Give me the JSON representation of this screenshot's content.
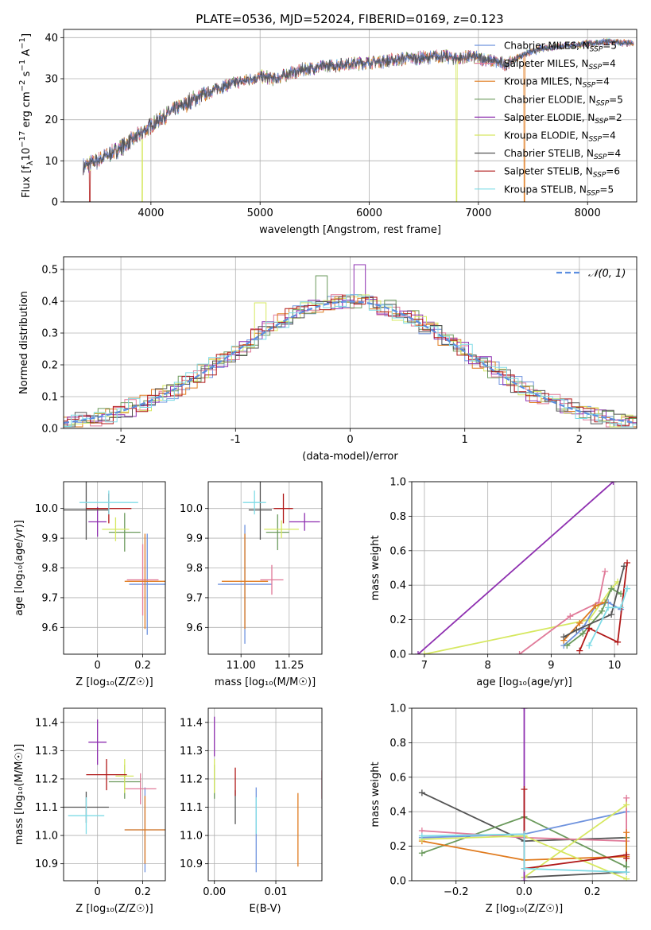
{
  "figure": {
    "title": "PLATE=0536, MJD=52024, FIBERID=0169, z=0.123"
  },
  "colors": {
    "chabrier_miles": "#6f93de",
    "salpeter_miles": "#e07a99",
    "kroupa_miles": "#e07b1f",
    "chabrier_elodie": "#6b9a5c",
    "salpeter_elodie": "#8e2fb0",
    "kroupa_elodie": "#d6e860",
    "chabrier_stelib": "#545454",
    "salpeter_stelib": "#b01818",
    "kroupa_stelib": "#7fdbe6",
    "normal_curve": "#5b8ee0"
  },
  "legend": [
    {
      "label": "Chabrier MILES, N",
      "sub": "SSP",
      "suffix": "=5",
      "color": "chabrier_miles"
    },
    {
      "label": "Salpeter MILES, N",
      "sub": "SSP",
      "suffix": "=4",
      "color": "salpeter_miles"
    },
    {
      "label": "Kroupa MILES, N",
      "sub": "SSP",
      "suffix": "=4",
      "color": "kroupa_miles"
    },
    {
      "label": "Chabrier ELODIE, N",
      "sub": "SSP",
      "suffix": "=5",
      "color": "chabrier_elodie"
    },
    {
      "label": "Salpeter ELODIE, N",
      "sub": "SSP",
      "suffix": "=2",
      "color": "salpeter_elodie"
    },
    {
      "label": "Kroupa ELODIE, N",
      "sub": "SSP",
      "suffix": "=4",
      "color": "kroupa_elodie"
    },
    {
      "label": "Chabrier STELIB, N",
      "sub": "SSP",
      "suffix": "=4",
      "color": "chabrier_stelib"
    },
    {
      "label": "Salpeter STELIB, N",
      "sub": "SSP",
      "suffix": "=6",
      "color": "salpeter_stelib"
    },
    {
      "label": "Kroupa STELIB, N",
      "sub": "SSP",
      "suffix": "=5",
      "color": "kroupa_stelib"
    }
  ],
  "chart_data": [
    {
      "id": "spectrum",
      "type": "line",
      "xlabel": "wavelength [Angstrom, rest frame]",
      "ylabel": "Flux [f",
      "ylabel_parts": [
        "Flux [f",
        "λ",
        "10",
        "−17",
        " erg cm",
        "−2",
        " s",
        "−1",
        " A",
        "−1",
        "]"
      ],
      "xlim": [
        3200,
        8450
      ],
      "ylim": [
        0,
        42
      ],
      "xticks": [
        4000,
        5000,
        6000,
        7000,
        8000
      ],
      "yticks": [
        0,
        10,
        20,
        30,
        40
      ],
      "continuum": {
        "x": [
          3380,
          3500,
          3650,
          3800,
          3950,
          4100,
          4250,
          4400,
          4550,
          4700,
          4850,
          5000,
          5150,
          5300,
          5450,
          5600,
          5750,
          5900,
          6050,
          6200,
          6350,
          6500,
          6650,
          6800,
          6950,
          7100,
          7250,
          7420,
          7600,
          7800,
          8000,
          8200,
          8420
        ],
        "y": [
          8.5,
          10,
          12,
          14.5,
          17.5,
          20.5,
          23,
          25,
          27,
          28.5,
          29.5,
          30.5,
          30,
          31.5,
          32.5,
          33,
          33.5,
          33.8,
          34,
          34.5,
          35,
          35,
          35.5,
          35,
          35.3,
          34.5,
          33.5,
          36,
          37.5,
          38,
          38.5,
          39,
          38.5
        ]
      },
      "drops": [
        {
          "series": "salpeter_stelib",
          "x": 3440
        },
        {
          "series": "kroupa_elodie",
          "x": 3920
        },
        {
          "series": "kroupa_elodie",
          "x": 6800
        },
        {
          "series": "kroupa_miles",
          "x": 7420
        }
      ]
    },
    {
      "id": "residuals",
      "type": "step",
      "xlabel": "(data-model)/error",
      "ylabel": "Normed distribution",
      "xlim": [
        -2.5,
        2.5
      ],
      "ylim": [
        0,
        0.54
      ],
      "xticks": [
        -2,
        -1,
        0,
        1,
        2
      ],
      "yticks": [
        0.0,
        0.1,
        0.2,
        0.3,
        0.4,
        0.5
      ],
      "legend_label": "𝒩(0, 1)",
      "bin_width": 0.1,
      "peak_outliers": [
        {
          "series": "salpeter_elodie",
          "x": 0.05,
          "y": 0.515
        },
        {
          "series": "chabrier_elodie",
          "x": -0.25,
          "y": 0.48
        },
        {
          "series": "kroupa_elodie",
          "x": -0.75,
          "y": 0.395
        }
      ]
    },
    {
      "id": "age_vs_Z",
      "type": "errorbar",
      "xlabel": "Z [log",
      "xlabel_text": "Z [log₁₀(Z/Z☉)]",
      "ylabel_text": "age  [log₁₀(age/yr)]",
      "xlim": [
        -0.15,
        0.3
      ],
      "ylim": [
        9.51,
        10.09
      ],
      "xticks": [
        0.0,
        0.2
      ],
      "yticks": [
        9.6,
        9.7,
        9.8,
        9.9,
        10.0
      ],
      "points": [
        {
          "series": "chabrier_miles",
          "x": 0.22,
          "xerr": 0.08,
          "y": 9.745,
          "yerr": 0.17
        },
        {
          "series": "salpeter_miles",
          "x": 0.2,
          "xerr": 0.07,
          "y": 9.76,
          "yerr": 0.12
        },
        {
          "series": "kroupa_miles",
          "x": 0.21,
          "xerr": 0.09,
          "y": 9.755,
          "yerr": 0.16
        },
        {
          "series": "chabrier_elodie",
          "x": 0.12,
          "xerr": 0.07,
          "y": 9.92,
          "yerr": 0.065
        },
        {
          "series": "salpeter_elodie",
          "x": 0.0,
          "xerr": 0.04,
          "y": 9.955,
          "yerr": 0.05
        },
        {
          "series": "kroupa_elodie",
          "x": 0.08,
          "xerr": 0.06,
          "y": 9.93,
          "yerr": 0.04
        },
        {
          "series": "chabrier_stelib",
          "x": -0.05,
          "xerr": 0.1,
          "y": 9.995,
          "yerr": 0.1
        },
        {
          "series": "salpeter_stelib",
          "x": 0.05,
          "xerr": 0.1,
          "y": 10.0,
          "yerr": 0.05
        },
        {
          "series": "kroupa_stelib",
          "x": 0.05,
          "xerr": 0.13,
          "y": 10.02,
          "yerr": 0.04
        }
      ]
    },
    {
      "id": "age_vs_mass",
      "type": "errorbar",
      "xlabel_text": "mass [log₁₀(M/M☉)]",
      "xlim": [
        10.83,
        11.42
      ],
      "ylim": [
        9.51,
        10.09
      ],
      "xticks": [
        11.0,
        11.25
      ],
      "xtick_labels": [
        "11.00",
        "11.25"
      ],
      "yticks": [
        9.6,
        9.7,
        9.8,
        9.9,
        10.0
      ],
      "points": [
        {
          "series": "chabrier_miles",
          "x": 11.02,
          "xerr": 0.14,
          "y": 9.745,
          "yerr": 0.2
        },
        {
          "series": "salpeter_miles",
          "x": 11.16,
          "xerr": 0.06,
          "y": 9.76,
          "yerr": 0.05
        },
        {
          "series": "kroupa_miles",
          "x": 11.02,
          "xerr": 0.12,
          "y": 9.755,
          "yerr": 0.16
        },
        {
          "series": "chabrier_elodie",
          "x": 11.19,
          "xerr": 0.06,
          "y": 9.92,
          "yerr": 0.06
        },
        {
          "series": "salpeter_elodie",
          "x": 11.33,
          "xerr": 0.08,
          "y": 9.955,
          "yerr": 0.03
        },
        {
          "series": "kroupa_elodie",
          "x": 11.21,
          "xerr": 0.09,
          "y": 9.93,
          "yerr": 0.03
        },
        {
          "series": "chabrier_stelib",
          "x": 11.1,
          "xerr": 0.06,
          "y": 9.995,
          "yerr": 0.1
        },
        {
          "series": "salpeter_stelib",
          "x": 11.22,
          "xerr": 0.05,
          "y": 10.0,
          "yerr": 0.05
        },
        {
          "series": "kroupa_stelib",
          "x": 11.07,
          "xerr": 0.06,
          "y": 10.02,
          "yerr": 0.04
        }
      ]
    },
    {
      "id": "mass_weight_vs_age",
      "type": "line",
      "xlabel_text": "age  [log₁₀(age/yr)]",
      "ylabel": "mass weight",
      "xlim": [
        6.8,
        10.35
      ],
      "ylim": [
        0.0,
        1.0
      ],
      "xticks": [
        7,
        8,
        9,
        10
      ],
      "yticks": [
        0.0,
        0.2,
        0.4,
        0.6,
        0.8,
        1.0
      ],
      "series": [
        {
          "name": "salpeter_elodie",
          "x": [
            6.9,
            9.98
          ],
          "y": [
            0.0,
            1.0
          ]
        },
        {
          "name": "kroupa_elodie",
          "x": [
            7.0,
            9.6,
            9.95,
            10.05
          ],
          "y": [
            0.0,
            0.2,
            0.38,
            0.42
          ]
        },
        {
          "name": "salpeter_miles",
          "x": [
            8.5,
            9.3,
            9.75,
            9.85
          ],
          "y": [
            0.0,
            0.22,
            0.3,
            0.48
          ]
        },
        {
          "name": "chabrier_miles",
          "x": [
            9.2,
            9.5,
            9.7,
            9.9,
            10.1
          ],
          "y": [
            0.05,
            0.15,
            0.28,
            0.3,
            0.26
          ]
        },
        {
          "name": "kroupa_miles",
          "x": [
            9.2,
            9.45,
            9.7,
            9.85
          ],
          "y": [
            0.08,
            0.18,
            0.28,
            0.3
          ]
        },
        {
          "name": "chabrier_elodie",
          "x": [
            9.25,
            9.5,
            9.8,
            9.95,
            10.1
          ],
          "y": [
            0.05,
            0.12,
            0.25,
            0.38,
            0.35
          ]
        },
        {
          "name": "chabrier_stelib",
          "x": [
            9.2,
            9.4,
            9.95,
            10.15
          ],
          "y": [
            0.1,
            0.14,
            0.23,
            0.51
          ]
        },
        {
          "name": "salpeter_stelib",
          "x": [
            9.45,
            9.6,
            10.05,
            10.2
          ],
          "y": [
            0.02,
            0.15,
            0.07,
            0.53
          ]
        },
        {
          "name": "kroupa_stelib",
          "x": [
            9.6,
            9.9,
            10.1,
            10.2
          ],
          "y": [
            0.05,
            0.27,
            0.27,
            0.38
          ]
        }
      ]
    },
    {
      "id": "mass_vs_Z",
      "type": "errorbar",
      "xlabel_text": "Z [log₁₀(Z/Z☉)]",
      "ylabel_text": "mass [log₁₀(M/M☉)]",
      "xlim": [
        -0.15,
        0.3
      ],
      "ylim": [
        10.84,
        11.45
      ],
      "xticks": [
        0.0,
        0.2
      ],
      "yticks": [
        10.9,
        11.0,
        11.1,
        11.2,
        11.3,
        11.4
      ],
      "points": [
        {
          "series": "chabrier_miles",
          "x": 0.21,
          "xerr": 0.09,
          "y": 11.02,
          "yerr": 0.15
        },
        {
          "series": "salpeter_miles",
          "x": 0.19,
          "xerr": 0.07,
          "y": 11.165,
          "yerr": 0.055
        },
        {
          "series": "kroupa_miles",
          "x": 0.21,
          "xerr": 0.09,
          "y": 11.02,
          "yerr": 0.12
        },
        {
          "series": "chabrier_elodie",
          "x": 0.12,
          "xerr": 0.07,
          "y": 11.19,
          "yerr": 0.06
        },
        {
          "series": "salpeter_elodie",
          "x": 0.0,
          "xerr": 0.04,
          "y": 11.33,
          "yerr": 0.08
        },
        {
          "series": "kroupa_elodie",
          "x": 0.12,
          "xerr": 0.04,
          "y": 11.21,
          "yerr": 0.06
        },
        {
          "series": "chabrier_stelib",
          "x": -0.05,
          "xerr": 0.1,
          "y": 11.1,
          "yerr": 0.055
        },
        {
          "series": "salpeter_stelib",
          "x": 0.04,
          "xerr": 0.09,
          "y": 11.215,
          "yerr": 0.055
        },
        {
          "series": "kroupa_stelib",
          "x": -0.05,
          "xerr": 0.08,
          "y": 11.07,
          "yerr": 0.065
        }
      ]
    },
    {
      "id": "mass_vs_ebv",
      "type": "errorbar",
      "xlabel": "E(B-V)",
      "xlim": [
        -0.001,
        0.0175
      ],
      "ylim": [
        10.84,
        11.45
      ],
      "xticks": [
        0.0,
        0.01
      ],
      "xtick_labels": [
        "0.00",
        "0.01"
      ],
      "yticks": [
        10.9,
        11.0,
        11.1,
        11.2,
        11.3,
        11.4
      ],
      "points": [
        {
          "series": "chabrier_miles",
          "x": 0.0068,
          "y": 11.02,
          "yerr": 0.15
        },
        {
          "series": "salpeter_miles",
          "x": 0.0175,
          "y": 11.18,
          "yerr": 0.05
        },
        {
          "series": "kroupa_miles",
          "x": 0.0136,
          "y": 11.02,
          "yerr": 0.13
        },
        {
          "series": "chabrier_elodie",
          "x": 0.0,
          "y": 11.19,
          "yerr": 0.06
        },
        {
          "series": "salpeter_elodie",
          "x": 0.0,
          "y": 11.35,
          "yerr": 0.07
        },
        {
          "series": "kroupa_elodie",
          "x": 0.0,
          "y": 11.21,
          "yerr": 0.06
        },
        {
          "series": "chabrier_stelib",
          "x": 0.0034,
          "y": 11.1,
          "yerr": 0.06
        },
        {
          "series": "salpeter_stelib",
          "x": 0.0034,
          "y": 11.19,
          "yerr": 0.05
        },
        {
          "series": "kroupa_stelib",
          "x": 0.0068,
          "y": 11.07,
          "yerr": 0.065
        }
      ]
    },
    {
      "id": "mass_weight_vs_Z",
      "type": "line",
      "xlabel_text": "Z [log₁₀(Z/Z☉)]",
      "ylabel": "mass weight",
      "xlim": [
        -0.33,
        0.33
      ],
      "ylim": [
        0.0,
        1.0
      ],
      "xticks": [
        -0.2,
        0.0,
        0.2
      ],
      "xtick_labels": [
        "−0.2",
        "0.0",
        "0.2"
      ],
      "yticks": [
        0.0,
        0.2,
        0.4,
        0.6,
        0.8,
        1.0
      ],
      "series": [
        {
          "name": "chabrier_stelib",
          "x": [
            -0.3,
            0.0,
            0.3,
            0.3,
            0.0
          ],
          "y": [
            0.51,
            0.23,
            0.25,
            0.05,
            0.02
          ]
        },
        {
          "name": "chabrier_elodie",
          "x": [
            -0.3,
            0.0,
            0.3,
            0.3
          ],
          "y": [
            0.16,
            0.37,
            0.08,
            0.25
          ]
        },
        {
          "name": "chabrier_miles",
          "x": [
            -0.3,
            0.0,
            0.3
          ],
          "y": [
            0.25,
            0.27,
            0.4
          ]
        },
        {
          "name": "salpeter_miles",
          "x": [
            -0.3,
            0.0,
            0.3,
            0.3
          ],
          "y": [
            0.29,
            0.25,
            0.23,
            0.48
          ]
        },
        {
          "name": "kroupa_miles",
          "x": [
            -0.3,
            0.0,
            0.3,
            0.3
          ],
          "y": [
            0.23,
            0.12,
            0.14,
            0.28
          ]
        },
        {
          "name": "kroupa_elodie",
          "x": [
            -0.3,
            0.0,
            0.3
          ],
          "y": [
            0.24,
            0.26,
            0.01
          ]
        },
        {
          "name": "kroupa_elodie_b",
          "x": [
            0.0,
            0.3
          ],
          "y": [
            0.02,
            0.44
          ]
        },
        {
          "name": "salpeter_elodie",
          "x": [
            0.0,
            0.0
          ],
          "y": [
            0.0,
            1.0
          ]
        },
        {
          "name": "salpeter_stelib",
          "x": [
            0.0,
            0.0,
            0.3,
            0.3
          ],
          "y": [
            0.53,
            0.07,
            0.15,
            0.13
          ]
        },
        {
          "name": "kroupa_stelib",
          "x": [
            -0.3,
            0.0,
            0.0,
            0.3
          ],
          "y": [
            0.26,
            0.27,
            0.07,
            0.05
          ]
        }
      ]
    }
  ]
}
